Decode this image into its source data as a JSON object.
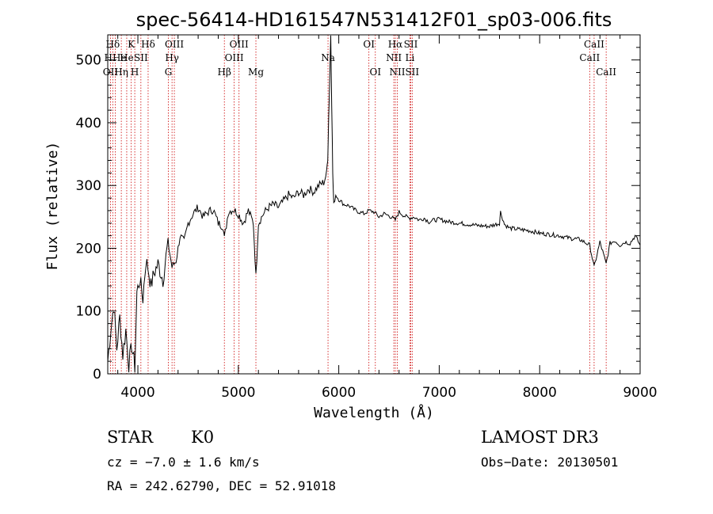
{
  "chart_data": {
    "type": "line",
    "title": "spec-56414-HD161547N531412F01_sp03-006.fits",
    "xlabel": "Wavelength (Å)",
    "ylabel": "Flux (relative)",
    "xlim": [
      3700,
      9000
    ],
    "ylim": [
      0,
      540
    ],
    "xticks": [
      4000,
      5000,
      6000,
      7000,
      8000,
      9000
    ],
    "yticks": [
      0,
      100,
      200,
      300,
      400,
      500
    ],
    "series": [
      {
        "name": "spectrum",
        "x": [
          3700,
          3730,
          3760,
          3790,
          3820,
          3850,
          3880,
          3910,
          3940,
          3970,
          3990,
          4020,
          4050,
          4080,
          4100,
          4130,
          4160,
          4200,
          4250,
          4300,
          4340,
          4380,
          4420,
          4460,
          4500,
          4550,
          4600,
          4650,
          4700,
          4750,
          4800,
          4850,
          4861,
          4900,
          4950,
          5000,
          5050,
          5100,
          5150,
          5175,
          5200,
          5250,
          5300,
          5350,
          5400,
          5450,
          5500,
          5550,
          5600,
          5650,
          5700,
          5750,
          5800,
          5850,
          5880,
          5890,
          5900,
          5910,
          5920,
          5930,
          5940,
          5950,
          5970,
          6000,
          6050,
          6100,
          6150,
          6200,
          6250,
          6300,
          6350,
          6400,
          6450,
          6500,
          6563,
          6600,
          6650,
          6700,
          6750,
          6800,
          6850,
          6900,
          6950,
          7000,
          7100,
          7200,
          7300,
          7400,
          7500,
          7600,
          7610,
          7650,
          7700,
          7800,
          7900,
          8000,
          8100,
          8200,
          8300,
          8400,
          8498,
          8542,
          8600,
          8662,
          8700,
          8750,
          8800,
          8850,
          8900,
          8950,
          9000
        ],
        "y": [
          20,
          70,
          110,
          40,
          90,
          30,
          70,
          15,
          45,
          10,
          130,
          150,
          120,
          180,
          170,
          140,
          160,
          175,
          150,
          210,
          170,
          180,
          220,
          210,
          240,
          255,
          265,
          250,
          258,
          262,
          240,
          235,
          215,
          258,
          262,
          255,
          240,
          260,
          240,
          155,
          240,
          255,
          265,
          270,
          265,
          275,
          285,
          280,
          290,
          285,
          295,
          290,
          300,
          305,
          320,
          345,
          410,
          470,
          540,
          430,
          320,
          270,
          285,
          278,
          270,
          268,
          262,
          258,
          255,
          260,
          258,
          250,
          255,
          252,
          245,
          258,
          252,
          248,
          250,
          245,
          248,
          242,
          245,
          246,
          242,
          240,
          238,
          236,
          235,
          240,
          258,
          238,
          232,
          230,
          228,
          224,
          222,
          220,
          216,
          214,
          205,
          170,
          210,
          175,
          208,
          212,
          205,
          210,
          208,
          220,
          205
        ]
      }
    ],
    "spectral_lines": [
      {
        "name": "Hδ",
        "wavelength": 3750,
        "row": 1
      },
      {
        "name": "OII",
        "wavelength": 3727,
        "row": 3
      },
      {
        "name": "HHe",
        "wavelength": 3775,
        "row": 2
      },
      {
        "name": "Hη",
        "wavelength": 3835,
        "row": 3
      },
      {
        "name": "K",
        "wavelength": 3934,
        "row": 1
      },
      {
        "name": "He",
        "wavelength": 3889,
        "row": 2
      },
      {
        "name": "H",
        "wavelength": 3969,
        "row": 3
      },
      {
        "name": "SII",
        "wavelength": 4030,
        "row": 2
      },
      {
        "name": "Hδ",
        "wavelength": 4102,
        "row": 1
      },
      {
        "name": "OIII",
        "wavelength": 4363,
        "row": 1
      },
      {
        "name": "Hγ",
        "wavelength": 4340,
        "row": 2
      },
      {
        "name": "G",
        "wavelength": 4304,
        "row": 3
      },
      {
        "name": "Hβ",
        "wavelength": 4861,
        "row": 3
      },
      {
        "name": "OIII",
        "wavelength": 5007,
        "row": 1
      },
      {
        "name": "OIII",
        "wavelength": 4959,
        "row": 2
      },
      {
        "name": "Mg",
        "wavelength": 5175,
        "row": 3
      },
      {
        "name": "Na",
        "wavelength": 5893,
        "row": 2
      },
      {
        "name": "OI",
        "wavelength": 6300,
        "row": 1
      },
      {
        "name": "OI",
        "wavelength": 6364,
        "row": 3
      },
      {
        "name": "Hα",
        "wavelength": 6563,
        "row": 1
      },
      {
        "name": "NII",
        "wavelength": 6548,
        "row": 2
      },
      {
        "name": "NII",
        "wavelength": 6583,
        "row": 3
      },
      {
        "name": "SII",
        "wavelength": 6717,
        "row": 1
      },
      {
        "name": "Li",
        "wavelength": 6708,
        "row": 2
      },
      {
        "name": "SII",
        "wavelength": 6731,
        "row": 3
      },
      {
        "name": "CaII",
        "wavelength": 8542,
        "row": 1
      },
      {
        "name": "CaII",
        "wavelength": 8498,
        "row": 2
      },
      {
        "name": "CaII",
        "wavelength": 8662,
        "row": 3
      }
    ]
  },
  "footer": {
    "object_class": "STAR",
    "subclass": "K0",
    "survey": "LAMOST DR3",
    "redshift": "cz = −7.0 ± 1.6 km/s",
    "obs_date": "Obs−Date: 20130501",
    "coordinates": "RA = 242.62790, DEC =  52.91018"
  },
  "colors": {
    "spectrum": "#000000",
    "line_marker": "#cc0000",
    "axis": "#000000"
  }
}
